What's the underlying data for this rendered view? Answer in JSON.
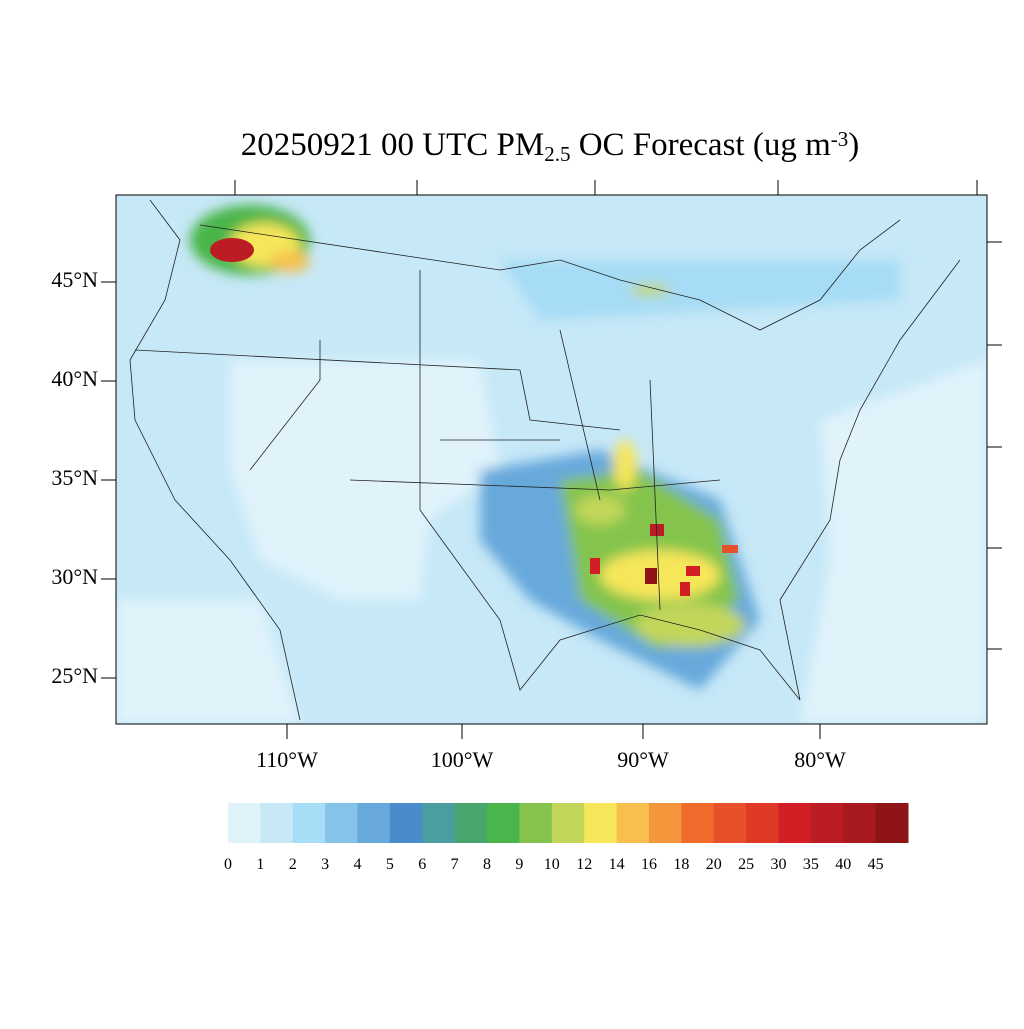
{
  "title": {
    "main": "20250921 00 UTC PM",
    "subscript": "2.5",
    "middle": " OC Forecast (ug m",
    "superscript": "-3",
    "end": ")"
  },
  "lat_labels": [
    "45°N",
    "40°N",
    "35°N",
    "30°N",
    "25°N"
  ],
  "lon_labels": [
    "110°W",
    "100°W",
    "90°W",
    "80°W"
  ],
  "colorbar": {
    "levels": [
      0,
      1,
      2,
      3,
      4,
      5,
      6,
      7,
      8,
      9,
      10,
      12,
      14,
      16,
      18,
      20,
      25,
      30,
      35,
      40,
      45
    ],
    "colors": [
      "#e0f3fb",
      "#c6e8f7",
      "#a6dcf5",
      "#86c3e8",
      "#68a9dc",
      "#4a8ccb",
      "#4a9ea0",
      "#48a56e",
      "#4ab54a",
      "#84c44e",
      "#c2d65a",
      "#f6e65a",
      "#f8bf4e",
      "#f6963c",
      "#f06a2c",
      "#e8502a",
      "#de3a26",
      "#d21f26",
      "#bc1c24",
      "#a81a1e",
      "#8e1418"
    ]
  }
}
